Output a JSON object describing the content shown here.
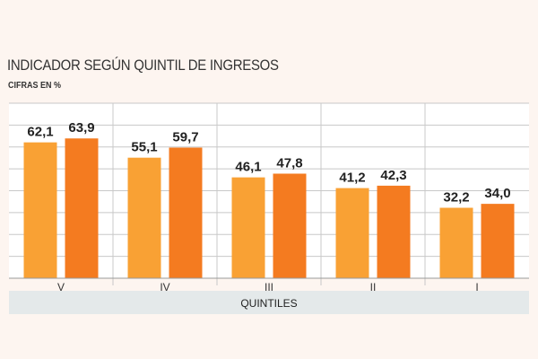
{
  "chart_data": {
    "type": "bar",
    "title": "INDICADOR SEGÚN QUINTIL DE INGRESOS",
    "subtitle": "CIFRAS EN %",
    "xlabel": "QUINTILES",
    "ylabel": "",
    "categories": [
      "V",
      "IV",
      "III",
      "II",
      "I"
    ],
    "series": [
      {
        "values": [
          62.1,
          55.1,
          46.1,
          41.2,
          32.2
        ],
        "labels": [
          "62,1",
          "55,1",
          "46,1",
          "41,2",
          "32,2"
        ]
      },
      {
        "values": [
          63.9,
          59.7,
          47.8,
          42.3,
          34.0
        ],
        "labels": [
          "63,9",
          "59,7",
          "47,8",
          "42,3",
          "34,0"
        ]
      }
    ],
    "ylim": [
      0,
      80
    ],
    "grid": true,
    "legend": "none",
    "colors": {
      "series": [
        "#f9a134",
        "#f47b20"
      ],
      "grid": "#c8c8c8",
      "axis_band": "#e4e9ea",
      "background": "#fdf5f0",
      "plot_background": "#ffffff"
    }
  }
}
